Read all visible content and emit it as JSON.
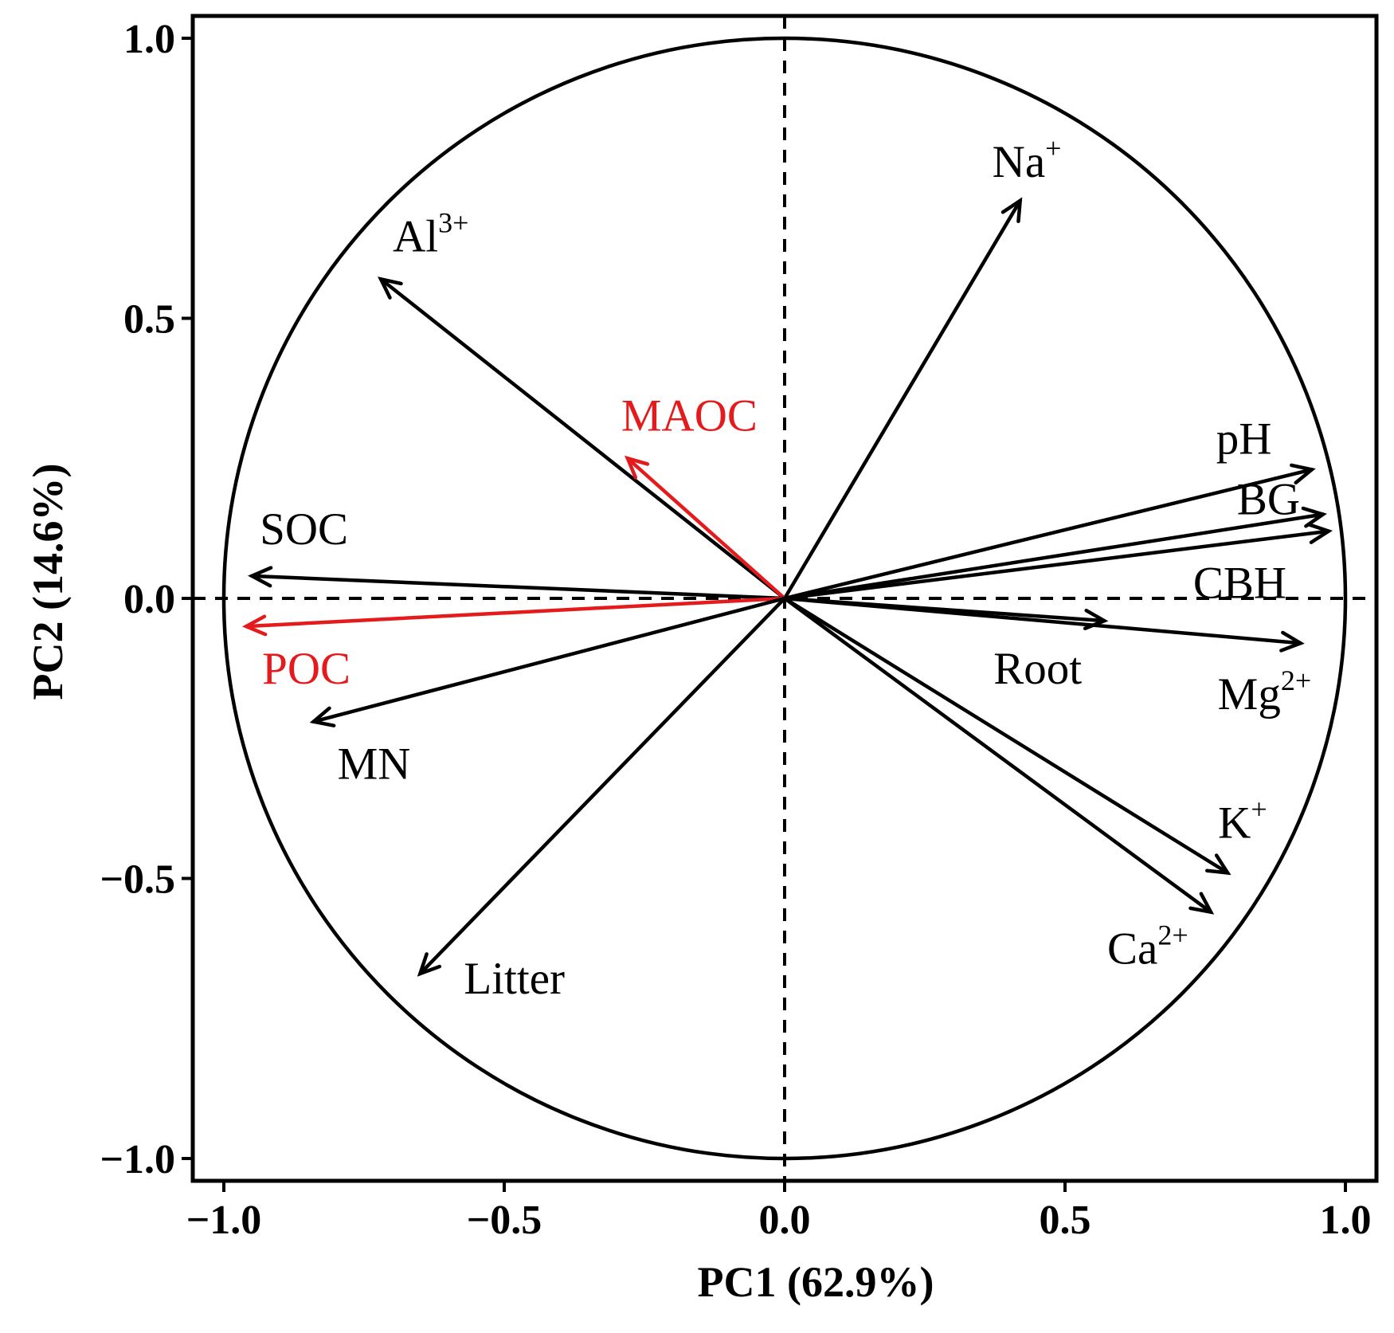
{
  "chart_data": {
    "type": "scatter",
    "subtype": "pca-loading-biplot",
    "xlabel": "PC1 (62.9%)",
    "ylabel": "PC2 (14.6%)",
    "xlim": [
      -1.05,
      1.05
    ],
    "ylim": [
      -1.05,
      1.05
    ],
    "xticks": [
      -1.0,
      -0.5,
      0.0,
      0.5,
      1.0
    ],
    "yticks": [
      -1.0,
      -0.5,
      0.0,
      0.5,
      1.0
    ],
    "xtick_labels": [
      "−1.0",
      "−0.5",
      "0.0",
      "0.5",
      "1.0"
    ],
    "ytick_labels": [
      "−1.0",
      "−0.5",
      "0.0",
      "0.5",
      "1.0"
    ],
    "unit_circle_radius": 1.0,
    "reference_lines": [
      "x = 0",
      "y = 0"
    ],
    "grid": false,
    "colors": {
      "default": "#000000",
      "highlight": "#e41a1c"
    },
    "vectors": [
      {
        "name": "Na+",
        "label": "Na",
        "sup": "+",
        "x": 0.42,
        "y": 0.71,
        "color": "#000000"
      },
      {
        "name": "Al3+",
        "label": "Al",
        "sup": "3+",
        "x": -0.72,
        "y": 0.57,
        "color": "#000000"
      },
      {
        "name": "MAOC",
        "label": "MAOC",
        "sup": "",
        "x": -0.28,
        "y": 0.25,
        "color": "#e41a1c"
      },
      {
        "name": "pH",
        "label": "pH",
        "sup": "",
        "x": 0.94,
        "y": 0.23,
        "color": "#000000"
      },
      {
        "name": "BG",
        "label": "BG",
        "sup": "",
        "x": 0.96,
        "y": 0.15,
        "color": "#000000"
      },
      {
        "name": "CBH",
        "label": "CBH",
        "sup": "",
        "x": 0.97,
        "y": 0.12,
        "color": "#000000"
      },
      {
        "name": "SOC",
        "label": "SOC",
        "sup": "",
        "x": -0.95,
        "y": 0.04,
        "color": "#000000"
      },
      {
        "name": "POC",
        "label": "POC",
        "sup": "",
        "x": -0.96,
        "y": -0.05,
        "color": "#e41a1c"
      },
      {
        "name": "Root",
        "label": "Root",
        "sup": "",
        "x": 0.57,
        "y": -0.04,
        "color": "#000000"
      },
      {
        "name": "Mg2+",
        "label": "Mg",
        "sup": "2+",
        "x": 0.92,
        "y": -0.08,
        "color": "#000000"
      },
      {
        "name": "MN",
        "label": "MN",
        "sup": "",
        "x": -0.84,
        "y": -0.22,
        "color": "#000000"
      },
      {
        "name": "K+",
        "label": "K",
        "sup": "+",
        "x": 0.79,
        "y": -0.49,
        "color": "#000000"
      },
      {
        "name": "Ca2+",
        "label": "Ca",
        "sup": "2+",
        "x": 0.76,
        "y": -0.56,
        "color": "#000000"
      },
      {
        "name": "Litter",
        "label": "Litter",
        "sup": "",
        "x": -0.65,
        "y": -0.67,
        "color": "#000000"
      }
    ]
  }
}
